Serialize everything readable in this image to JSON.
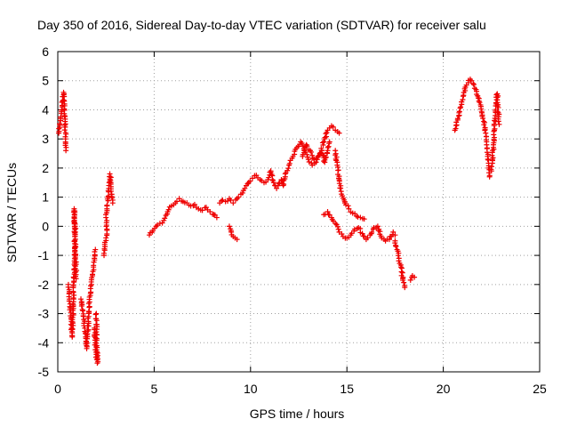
{
  "chart_data": {
    "type": "scatter",
    "title": "Day 350 of 2016, Sidereal Day-to-day VTEC variation (SDTVAR) for receiver salu",
    "xlabel": "GPS time / hours",
    "ylabel": "SDTVAR / TECUs",
    "xlim": [
      0,
      25
    ],
    "ylim": [
      -5,
      6
    ],
    "xticks": [
      0,
      5,
      10,
      15,
      20,
      25
    ],
    "yticks": [
      -5,
      -4,
      -3,
      -2,
      -1,
      0,
      1,
      2,
      3,
      4,
      5,
      6
    ],
    "grid": true,
    "marker": "+",
    "color": "#ee0000",
    "series": [
      {
        "name": "SDTVAR",
        "segments": [
          [
            [
              0.05,
              3.2
            ],
            [
              0.1,
              3.4
            ],
            [
              0.15,
              3.7
            ],
            [
              0.2,
              4.0
            ],
            [
              0.25,
              4.3
            ],
            [
              0.3,
              4.6
            ],
            [
              0.35,
              4.2
            ],
            [
              0.38,
              3.6
            ],
            [
              0.4,
              3.0
            ],
            [
              0.42,
              2.6
            ]
          ],
          [
            [
              0.55,
              -2.0
            ],
            [
              0.6,
              -2.5
            ],
            [
              0.65,
              -2.8
            ],
            [
              0.7,
              -3.2
            ],
            [
              0.72,
              -3.5
            ],
            [
              0.75,
              -3.8
            ],
            [
              0.8,
              -3.0
            ],
            [
              0.82,
              -2.5
            ],
            [
              0.85,
              -1.5
            ],
            [
              0.88,
              -0.6
            ],
            [
              0.9,
              0.0
            ],
            [
              0.85,
              0.6
            ],
            [
              0.92,
              -1.0
            ],
            [
              0.95,
              -1.8
            ]
          ],
          [
            [
              1.2,
              -2.5
            ],
            [
              1.3,
              -2.9
            ],
            [
              1.35,
              -3.2
            ],
            [
              1.4,
              -3.5
            ],
            [
              1.45,
              -3.8
            ],
            [
              1.5,
              -4.2
            ],
            [
              1.55,
              -3.6
            ],
            [
              1.6,
              -3.1
            ],
            [
              1.65,
              -2.6
            ],
            [
              1.7,
              -2.3
            ],
            [
              1.75,
              -2.0
            ],
            [
              1.8,
              -1.7
            ],
            [
              1.85,
              -1.4
            ],
            [
              1.9,
              -1.1
            ],
            [
              1.95,
              -0.8
            ]
          ],
          [
            [
              1.9,
              -3.5
            ],
            [
              1.95,
              -4.0
            ],
            [
              2.0,
              -4.4
            ],
            [
              2.05,
              -4.7
            ],
            [
              2.0,
              -3.0
            ]
          ],
          [
            [
              2.4,
              -1.0
            ],
            [
              2.45,
              -0.7
            ],
            [
              2.5,
              -0.4
            ],
            [
              2.55,
              -0.1
            ],
            [
              2.5,
              0.3
            ],
            [
              2.55,
              0.6
            ],
            [
              2.6,
              1.0
            ],
            [
              2.65,
              1.4
            ],
            [
              2.7,
              1.8
            ],
            [
              2.75,
              1.5
            ],
            [
              2.8,
              1.1
            ],
            [
              2.85,
              0.8
            ]
          ],
          [
            [
              4.75,
              -0.3
            ],
            [
              4.9,
              -0.2
            ],
            [
              5.1,
              0.0
            ],
            [
              5.3,
              0.1
            ],
            [
              5.5,
              0.2
            ],
            [
              5.7,
              0.5
            ],
            [
              5.9,
              0.7
            ],
            [
              6.1,
              0.8
            ],
            [
              6.3,
              0.95
            ],
            [
              6.5,
              0.85
            ],
            [
              6.7,
              0.8
            ],
            [
              6.9,
              0.7
            ],
            [
              7.1,
              0.75
            ],
            [
              7.3,
              0.6
            ],
            [
              7.5,
              0.55
            ],
            [
              7.7,
              0.65
            ],
            [
              7.9,
              0.5
            ],
            [
              8.1,
              0.4
            ],
            [
              8.25,
              0.3
            ]
          ],
          [
            [
              8.4,
              0.8
            ],
            [
              8.55,
              0.9
            ],
            [
              8.7,
              0.85
            ],
            [
              8.9,
              0.95
            ],
            [
              9.1,
              0.8
            ],
            [
              9.3,
              0.95
            ],
            [
              9.5,
              1.1
            ],
            [
              9.7,
              1.3
            ],
            [
              9.9,
              1.5
            ],
            [
              10.1,
              1.65
            ],
            [
              10.3,
              1.75
            ],
            [
              10.5,
              1.6
            ],
            [
              10.7,
              1.5
            ],
            [
              10.9,
              1.6
            ],
            [
              11.05,
              1.9
            ],
            [
              11.2,
              1.5
            ],
            [
              11.35,
              1.3
            ],
            [
              11.5,
              1.5
            ],
            [
              11.6,
              1.6
            ],
            [
              11.7,
              1.4
            ],
            [
              11.8,
              1.7
            ]
          ],
          [
            [
              8.9,
              0.0
            ],
            [
              9.0,
              -0.2
            ],
            [
              9.1,
              -0.35
            ],
            [
              9.2,
              -0.4
            ],
            [
              9.3,
              -0.45
            ]
          ],
          [
            [
              11.8,
              1.8
            ],
            [
              12.0,
              2.1
            ],
            [
              12.2,
              2.4
            ],
            [
              12.4,
              2.7
            ],
            [
              12.6,
              2.9
            ],
            [
              12.8,
              2.6
            ],
            [
              13.0,
              2.3
            ],
            [
              13.2,
              2.1
            ],
            [
              13.4,
              2.2
            ],
            [
              13.6,
              2.5
            ],
            [
              13.8,
              2.9
            ],
            [
              14.0,
              3.3
            ],
            [
              14.2,
              3.45
            ],
            [
              14.4,
              3.3
            ],
            [
              14.6,
              3.2
            ]
          ],
          [
            [
              12.7,
              2.4
            ],
            [
              12.9,
              2.8
            ],
            [
              13.1,
              2.6
            ],
            [
              13.3,
              2.3
            ],
            [
              13.5,
              2.4
            ],
            [
              13.7,
              2.6
            ],
            [
              13.85,
              2.2
            ],
            [
              14.0,
              2.6
            ],
            [
              14.1,
              2.9
            ]
          ],
          [
            [
              14.4,
              2.6
            ],
            [
              14.5,
              2.1
            ],
            [
              14.6,
              1.6
            ],
            [
              14.7,
              1.2
            ],
            [
              14.9,
              0.8
            ],
            [
              15.1,
              0.6
            ],
            [
              15.3,
              0.45
            ],
            [
              15.5,
              0.35
            ],
            [
              15.7,
              0.3
            ],
            [
              15.9,
              0.25
            ]
          ],
          [
            [
              13.8,
              0.4
            ],
            [
              14.0,
              0.5
            ],
            [
              14.2,
              0.3
            ],
            [
              14.4,
              0.1
            ],
            [
              14.6,
              -0.2
            ],
            [
              14.8,
              -0.35
            ],
            [
              15.0,
              -0.4
            ],
            [
              15.2,
              -0.3
            ],
            [
              15.4,
              -0.1
            ],
            [
              15.6,
              -0.05
            ],
            [
              15.8,
              -0.25
            ],
            [
              16.0,
              -0.45
            ],
            [
              16.2,
              -0.3
            ],
            [
              16.4,
              -0.05
            ],
            [
              16.6,
              0.0
            ],
            [
              16.8,
              -0.4
            ],
            [
              17.0,
              -0.5
            ],
            [
              17.2,
              -0.45
            ],
            [
              17.4,
              -0.2
            ],
            [
              17.5,
              -0.3
            ]
          ],
          [
            [
              17.5,
              -0.5
            ],
            [
              17.6,
              -0.8
            ],
            [
              17.7,
              -1.1
            ],
            [
              17.8,
              -1.4
            ],
            [
              17.9,
              -1.8
            ],
            [
              18.0,
              -2.1
            ]
          ],
          [
            [
              18.3,
              -1.85
            ],
            [
              18.4,
              -1.7
            ],
            [
              18.5,
              -1.75
            ]
          ],
          [
            [
              20.6,
              3.3
            ],
            [
              20.75,
              3.7
            ],
            [
              20.9,
              4.1
            ],
            [
              21.05,
              4.5
            ],
            [
              21.2,
              4.85
            ],
            [
              21.4,
              5.05
            ],
            [
              21.55,
              4.9
            ],
            [
              21.7,
              4.7
            ],
            [
              21.85,
              4.3
            ],
            [
              22.0,
              3.9
            ],
            [
              22.1,
              3.6
            ],
            [
              22.2,
              3.2
            ],
            [
              22.25,
              2.8
            ],
            [
              22.3,
              2.4
            ],
            [
              22.35,
              2.0
            ],
            [
              22.4,
              1.7
            ]
          ],
          [
            [
              22.5,
              1.9
            ],
            [
              22.55,
              2.3
            ],
            [
              22.6,
              2.8
            ],
            [
              22.65,
              3.3
            ],
            [
              22.7,
              3.8
            ],
            [
              22.75,
              4.2
            ],
            [
              22.8,
              4.55
            ],
            [
              22.85,
              3.9
            ],
            [
              22.9,
              3.5
            ]
          ]
        ]
      }
    ]
  }
}
